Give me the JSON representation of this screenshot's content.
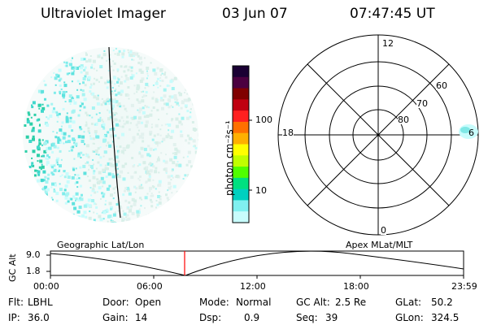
{
  "header": {
    "instrument": "Ultraviolet Imager",
    "date": "03 Jun 07",
    "time": "07:47:45 UT"
  },
  "left_panel": {
    "label": "Geographic Lat/Lon",
    "emission_color": "#22d3c8",
    "terminator_color": "#000000"
  },
  "colorbar": {
    "title": "photon cm⁻²s⁻¹",
    "ticks": [
      "100",
      "10"
    ],
    "scale": "log",
    "colors": [
      "#1a0033",
      "#4b0040",
      "#800000",
      "#c00010",
      "#ff2020",
      "#ff7000",
      "#ffb000",
      "#ffff00",
      "#c0ff00",
      "#50ff00",
      "#00e080",
      "#00d0c0",
      "#80f0f0",
      "#c8fcfc"
    ]
  },
  "right_panel": {
    "label": "Apex  MLat/MLT",
    "mlt_labels": {
      "top": "12",
      "left": "18",
      "right": "6",
      "bottom": "0"
    },
    "lat_labels": [
      "60",
      "70",
      "80"
    ]
  },
  "timeline": {
    "axis_label": "GC Alt",
    "y_ticks": [
      "9.0",
      "1.8"
    ],
    "x_ticks": [
      "00:00",
      "06:00",
      "12:00",
      "18:00",
      "23:59"
    ],
    "marker_color": "#ff0000"
  },
  "info": {
    "filter": {
      "label": "Flt:",
      "value": "LBHL"
    },
    "door": {
      "label": "Door:",
      "value": "Open"
    },
    "mode": {
      "label": "Mode:",
      "value": "Normal"
    },
    "gc_alt": {
      "label": "GC Alt:",
      "value": "2.5 Re"
    },
    "glat": {
      "label": "GLat:",
      "value": "50.2"
    },
    "ip": {
      "label": "IP:",
      "value": "36.0"
    },
    "gain": {
      "label": "Gain:",
      "value": "14"
    },
    "dsp": {
      "label": "Dsp:",
      "value": "0.9"
    },
    "seq": {
      "label": "Seq:",
      "value": "39"
    },
    "glon": {
      "label": "GLon:",
      "value": "324.5"
    }
  }
}
